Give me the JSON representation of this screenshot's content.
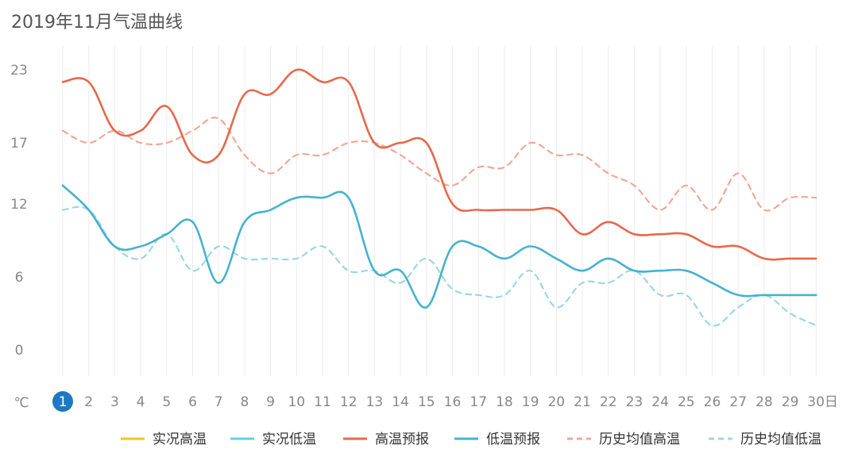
{
  "chart_data": {
    "type": "line",
    "title": "2019年11月气温曲线",
    "x": [
      1,
      2,
      3,
      4,
      5,
      6,
      7,
      8,
      9,
      10,
      11,
      12,
      13,
      14,
      15,
      16,
      17,
      18,
      19,
      20,
      21,
      22,
      23,
      24,
      25,
      26,
      27,
      28,
      29,
      30
    ],
    "x_tick_labels": [
      "1",
      "2",
      "3",
      "4",
      "5",
      "6",
      "7",
      "8",
      "9",
      "10",
      "11",
      "12",
      "13",
      "14",
      "15",
      "16",
      "17",
      "18",
      "19",
      "20",
      "21",
      "22",
      "23",
      "24",
      "25",
      "26",
      "27",
      "28",
      "29",
      "30日"
    ],
    "selected_day": "1",
    "y_unit_label": "℃",
    "y_ticks": [
      0,
      6,
      12,
      17,
      23
    ],
    "ylim": [
      0,
      23
    ],
    "grid": "vertical",
    "legend_position": "bottom-right",
    "legend": [
      {
        "label": "实况高温",
        "color": "#f5c518",
        "dash": false
      },
      {
        "label": "实况低温",
        "color": "#5fd0e3",
        "dash": false
      },
      {
        "label": "高温预报",
        "color": "#e8684a",
        "dash": false
      },
      {
        "label": "低温预报",
        "color": "#45b2d1",
        "dash": false
      },
      {
        "label": "历史均值高温",
        "color": "#f2a896",
        "dash": true
      },
      {
        "label": "历史均值低温",
        "color": "#9bd8e4",
        "dash": true
      }
    ],
    "series": [
      {
        "name": "高温预报",
        "color": "#e8684a",
        "dash": false,
        "values": [
          22,
          22,
          18,
          18,
          20,
          16,
          16,
          21,
          21,
          23,
          22,
          22,
          17,
          17,
          17,
          12,
          11.5,
          11.5,
          11.5,
          11.5,
          9.5,
          10.5,
          9.5,
          9.5,
          9.5,
          8.5,
          8.5,
          7.5,
          7.5,
          7.5
        ]
      },
      {
        "name": "低温预报",
        "color": "#45b2d1",
        "dash": false,
        "values": [
          13.5,
          11.5,
          8.5,
          8.5,
          9.5,
          10.5,
          5.5,
          10.5,
          11.5,
          12.5,
          12.5,
          12.5,
          6.5,
          6.5,
          3.5,
          8.5,
          8.5,
          7.5,
          8.5,
          7.5,
          6.5,
          7.5,
          6.5,
          6.5,
          6.5,
          5.5,
          4.5,
          4.5,
          4.5,
          4.5
        ]
      },
      {
        "name": "历史均值高温",
        "color": "#f2a896",
        "dash": true,
        "values": [
          18,
          17,
          18,
          17,
          17,
          18,
          19,
          16,
          14.5,
          16,
          16,
          17,
          17,
          16,
          14.5,
          13.5,
          15,
          15,
          17,
          16,
          16,
          14.5,
          13.5,
          11.5,
          13.5,
          11.5,
          14.5,
          11.5,
          12.5,
          12.5
        ]
      },
      {
        "name": "历史均值低温",
        "color": "#9bd8e4",
        "dash": true,
        "values": [
          11.5,
          11.5,
          8.5,
          7.5,
          9.5,
          6.5,
          8.5,
          7.5,
          7.5,
          7.5,
          8.5,
          6.5,
          6.5,
          5.5,
          7.5,
          5,
          4.5,
          4.5,
          6.5,
          3.5,
          5.5,
          5.5,
          6.5,
          4.5,
          4.5,
          2,
          3.5,
          4.5,
          3,
          2
        ]
      }
    ]
  }
}
